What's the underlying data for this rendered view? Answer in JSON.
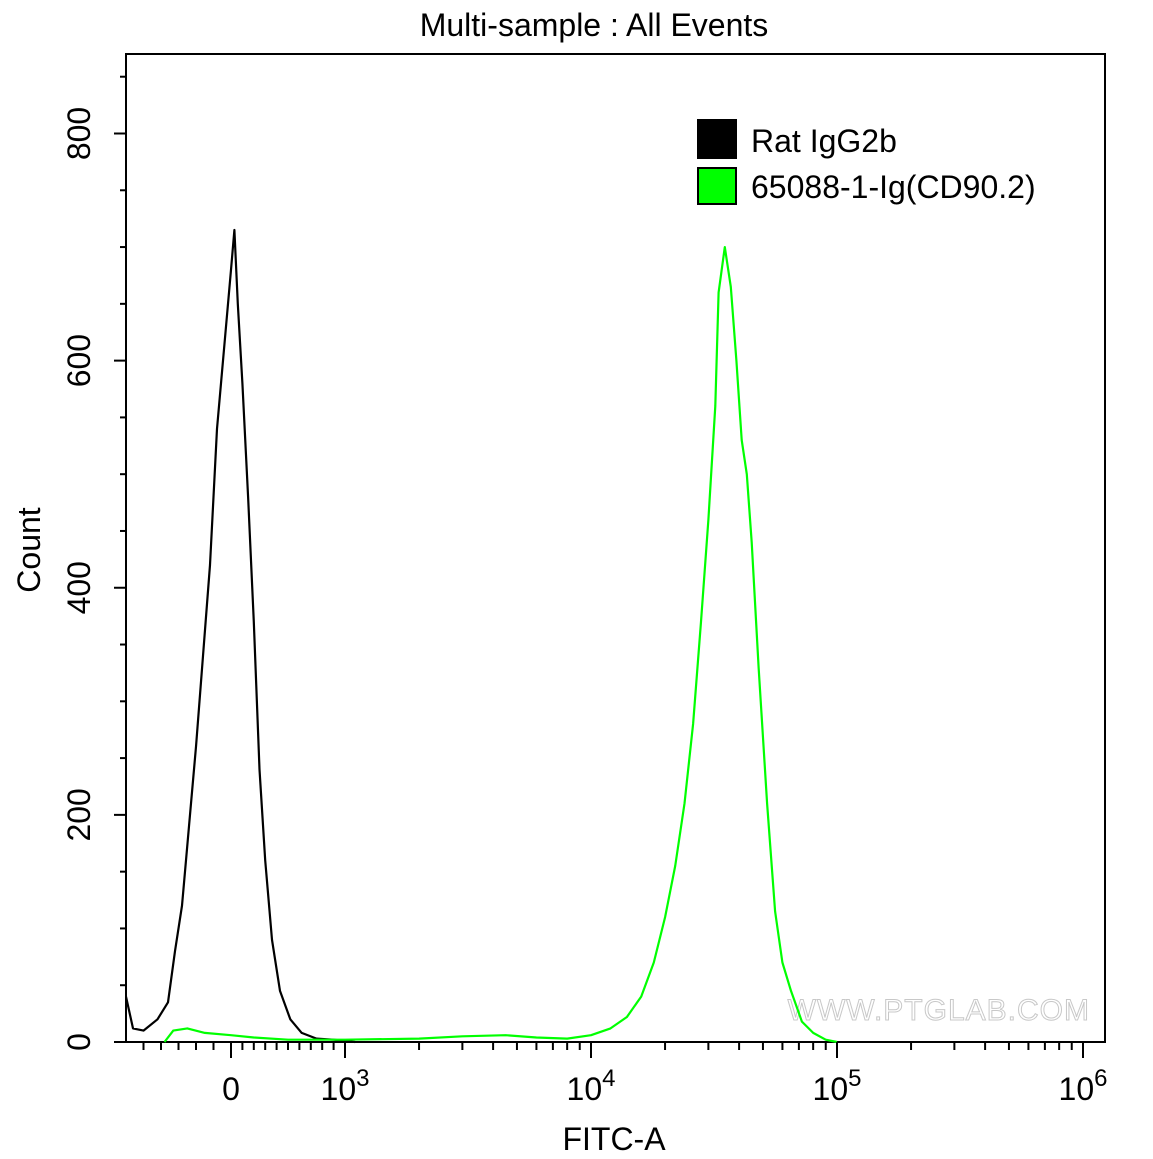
{
  "chart_data": {
    "type": "area",
    "title": "Multi-sample : All Events",
    "xlabel": "FITC-A",
    "ylabel": "Count",
    "x_scale": "biexponential",
    "xlim": [
      -600,
      1000000
    ],
    "ylim": [
      0,
      870
    ],
    "y_ticks": [
      0,
      200,
      400,
      600,
      800
    ],
    "y_minor_step": 50,
    "x_ticks": [
      {
        "value": 0,
        "label": "0",
        "exp": ""
      },
      {
        "value": 1000,
        "label": "10",
        "exp": "3"
      },
      {
        "value": 10000,
        "label": "10",
        "exp": "4"
      },
      {
        "value": 100000,
        "label": "10",
        "exp": "5"
      },
      {
        "value": 1000000,
        "label": "10",
        "exp": "6"
      }
    ],
    "legend": {
      "position": "top-right",
      "entries": [
        {
          "label": "Rat IgG2b",
          "color": "#000000"
        },
        {
          "label": "65088-1-Ig(CD90.2)",
          "color": "#00ff00"
        }
      ]
    },
    "grid": false,
    "watermark": "WWW.PTGLAB.COM",
    "series": [
      {
        "name": "Rat IgG2b",
        "color": "#000000",
        "points": [
          [
            -600,
            40
          ],
          [
            -560,
            12
          ],
          [
            -500,
            10
          ],
          [
            -420,
            20
          ],
          [
            -360,
            35
          ],
          [
            -320,
            80
          ],
          [
            -280,
            120
          ],
          [
            -240,
            190
          ],
          [
            -200,
            260
          ],
          [
            -160,
            340
          ],
          [
            -120,
            420
          ],
          [
            -80,
            540
          ],
          [
            -40,
            610
          ],
          [
            0,
            680
          ],
          [
            30,
            715
          ],
          [
            60,
            650
          ],
          [
            100,
            580
          ],
          [
            150,
            480
          ],
          [
            200,
            370
          ],
          [
            250,
            240
          ],
          [
            300,
            160
          ],
          [
            360,
            90
          ],
          [
            430,
            45
          ],
          [
            520,
            20
          ],
          [
            620,
            8
          ],
          [
            750,
            3
          ],
          [
            900,
            2
          ],
          [
            1100,
            0
          ]
        ]
      },
      {
        "name": "65088-1-Ig(CD90.2)",
        "color": "#00ff00",
        "points": [
          [
            -380,
            0
          ],
          [
            -330,
            10
          ],
          [
            -250,
            12
          ],
          [
            -150,
            8
          ],
          [
            0,
            6
          ],
          [
            200,
            4
          ],
          [
            500,
            2
          ],
          [
            1000,
            2
          ],
          [
            2000,
            3
          ],
          [
            3000,
            5
          ],
          [
            4500,
            6
          ],
          [
            6000,
            4
          ],
          [
            8000,
            3
          ],
          [
            10000,
            6
          ],
          [
            12000,
            12
          ],
          [
            14000,
            22
          ],
          [
            16000,
            40
          ],
          [
            18000,
            70
          ],
          [
            20000,
            110
          ],
          [
            22000,
            155
          ],
          [
            24000,
            210
          ],
          [
            26000,
            280
          ],
          [
            28000,
            370
          ],
          [
            30000,
            460
          ],
          [
            32000,
            560
          ],
          [
            33000,
            660
          ],
          [
            35000,
            700
          ],
          [
            37000,
            665
          ],
          [
            39000,
            600
          ],
          [
            41000,
            530
          ],
          [
            43000,
            500
          ],
          [
            45000,
            440
          ],
          [
            48000,
            330
          ],
          [
            52000,
            210
          ],
          [
            56000,
            115
          ],
          [
            60000,
            70
          ],
          [
            65000,
            45
          ],
          [
            72000,
            18
          ],
          [
            80000,
            8
          ],
          [
            90000,
            2
          ],
          [
            100000,
            0
          ]
        ]
      }
    ]
  }
}
